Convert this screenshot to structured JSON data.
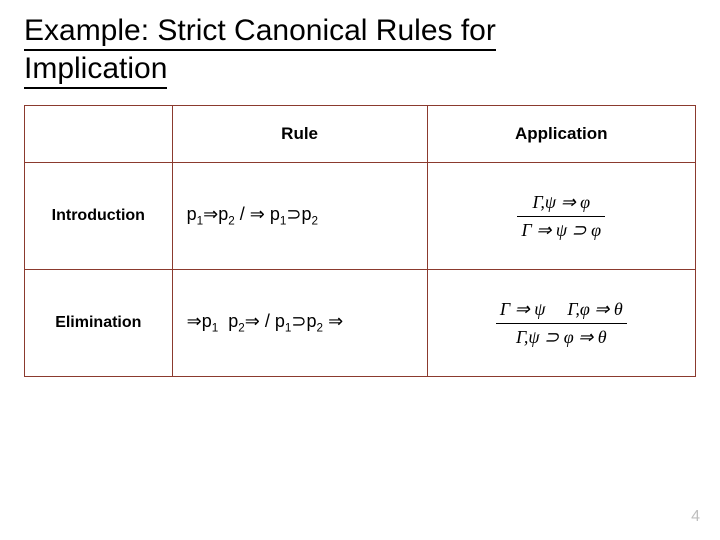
{
  "title_line1": "Example: Strict Canonical Rules for",
  "title_line2": "Implication",
  "table": {
    "border_color": "#8b3a2e",
    "headers": {
      "col1": "",
      "col2": "Rule",
      "col3": "Application"
    },
    "rows": {
      "intro": {
        "label": "Introduction",
        "rule": {
          "p": "p",
          "s1": "1",
          "s2": "2",
          "dblarrow": "⇒",
          "slash": " / ",
          "supset": "⊃"
        },
        "app": {
          "gamma": "Γ",
          "psi": "ψ",
          "phi": "φ",
          "comma": ",",
          "turn": "⇒",
          "supset": "⊃"
        }
      },
      "elim": {
        "label": "Elimination",
        "rule": {
          "p": "p",
          "s1": "1",
          "s2": "2",
          "dblarrow": "⇒",
          "slash": " / ",
          "supset": "⊃"
        },
        "app": {
          "gamma": "Γ",
          "psi": "ψ",
          "phi": "φ",
          "theta": "θ",
          "comma": ",",
          "turn": "⇒",
          "supset": "⊃"
        }
      }
    }
  },
  "page_number": "4",
  "colors": {
    "title": "#000000",
    "pagenum": "#bfbfbf",
    "background": "#ffffff"
  },
  "fontsizes": {
    "title": 30,
    "header": 17,
    "rowlabel": 16,
    "rule": 18,
    "app": 18,
    "pagenum": 16
  }
}
